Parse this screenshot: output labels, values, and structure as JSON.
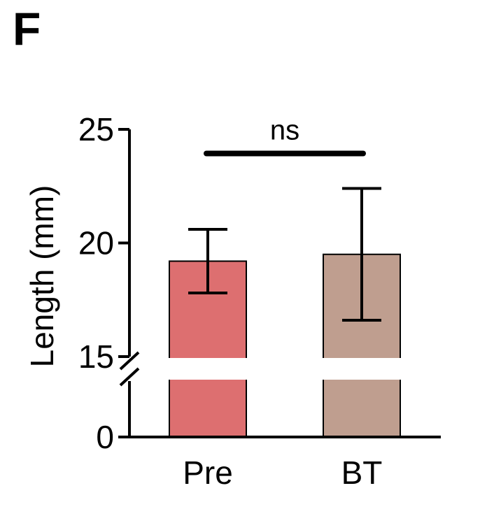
{
  "panel_label": "F",
  "colors": {
    "axis": "#000000",
    "bar_pre": "#dd6f70",
    "bar_bt": "#bf9e8f"
  },
  "chart_data": {
    "type": "bar",
    "title": "",
    "xlabel": "",
    "ylabel": "Length (mm)",
    "categories": [
      "Pre",
      "BT"
    ],
    "values": [
      19.2,
      19.5
    ],
    "error": [
      {
        "low": 17.8,
        "high": 20.6
      },
      {
        "low": 16.6,
        "high": 22.4
      }
    ],
    "ylim": [
      0,
      25
    ],
    "axis_break": [
      0,
      15
    ],
    "yticks": [
      {
        "value": 0,
        "label": "0"
      },
      {
        "value": 15,
        "label": "15"
      },
      {
        "value": 20,
        "label": "20"
      },
      {
        "value": 25,
        "label": "25"
      }
    ],
    "significance": {
      "from": 0,
      "to": 1,
      "label": "ns",
      "y": 24
    },
    "grid": false,
    "legend": "none"
  }
}
